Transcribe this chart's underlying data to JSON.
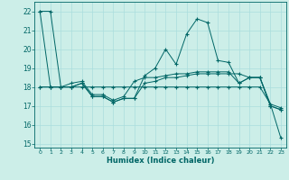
{
  "title": "",
  "xlabel": "Humidex (Indice chaleur)",
  "bg_color": "#cceee8",
  "grid_color": "#aadddd",
  "line_color": "#006666",
  "xlim": [
    -0.5,
    23.5
  ],
  "ylim": [
    14.8,
    22.5
  ],
  "yticks": [
    15,
    16,
    17,
    18,
    19,
    20,
    21,
    22
  ],
  "xticks": [
    0,
    1,
    2,
    3,
    4,
    5,
    6,
    7,
    8,
    9,
    10,
    11,
    12,
    13,
    14,
    15,
    16,
    17,
    18,
    19,
    20,
    21,
    22,
    23
  ],
  "xtick_labels": [
    "0",
    "1",
    "2",
    "3",
    "4",
    "5",
    "6",
    "7",
    "8",
    "9",
    "10",
    "11",
    "12",
    "13",
    "14",
    "15",
    "16",
    "17",
    "18",
    "19",
    "20",
    "21",
    "22",
    "23"
  ],
  "series1": [
    22,
    22,
    18,
    18,
    18.2,
    17.5,
    17.5,
    17.2,
    17.4,
    17.4,
    18.6,
    19.0,
    20.0,
    19.2,
    20.8,
    21.6,
    21.4,
    19.4,
    19.3,
    18.2,
    18.5,
    18.5,
    17.0,
    16.8
  ],
  "series2": [
    18,
    18,
    18,
    18,
    18.2,
    17.5,
    17.5,
    17.2,
    17.4,
    17.4,
    18.2,
    18.3,
    18.5,
    18.5,
    18.6,
    18.7,
    18.7,
    18.7,
    18.7,
    18.7,
    18.5,
    18.5,
    17.1,
    16.9
  ],
  "series3": [
    18,
    18,
    18,
    18.2,
    18.3,
    17.6,
    17.6,
    17.3,
    17.5,
    18.3,
    18.5,
    18.5,
    18.6,
    18.7,
    18.7,
    18.8,
    18.8,
    18.8,
    18.8,
    18.2,
    18.5,
    18.5,
    17.0,
    16.8
  ],
  "series4": [
    22,
    18,
    18,
    18,
    18,
    18,
    18,
    18,
    18,
    18,
    18,
    18,
    18,
    18,
    18,
    18,
    18,
    18,
    18,
    18,
    18,
    18,
    17.1,
    15.3
  ]
}
